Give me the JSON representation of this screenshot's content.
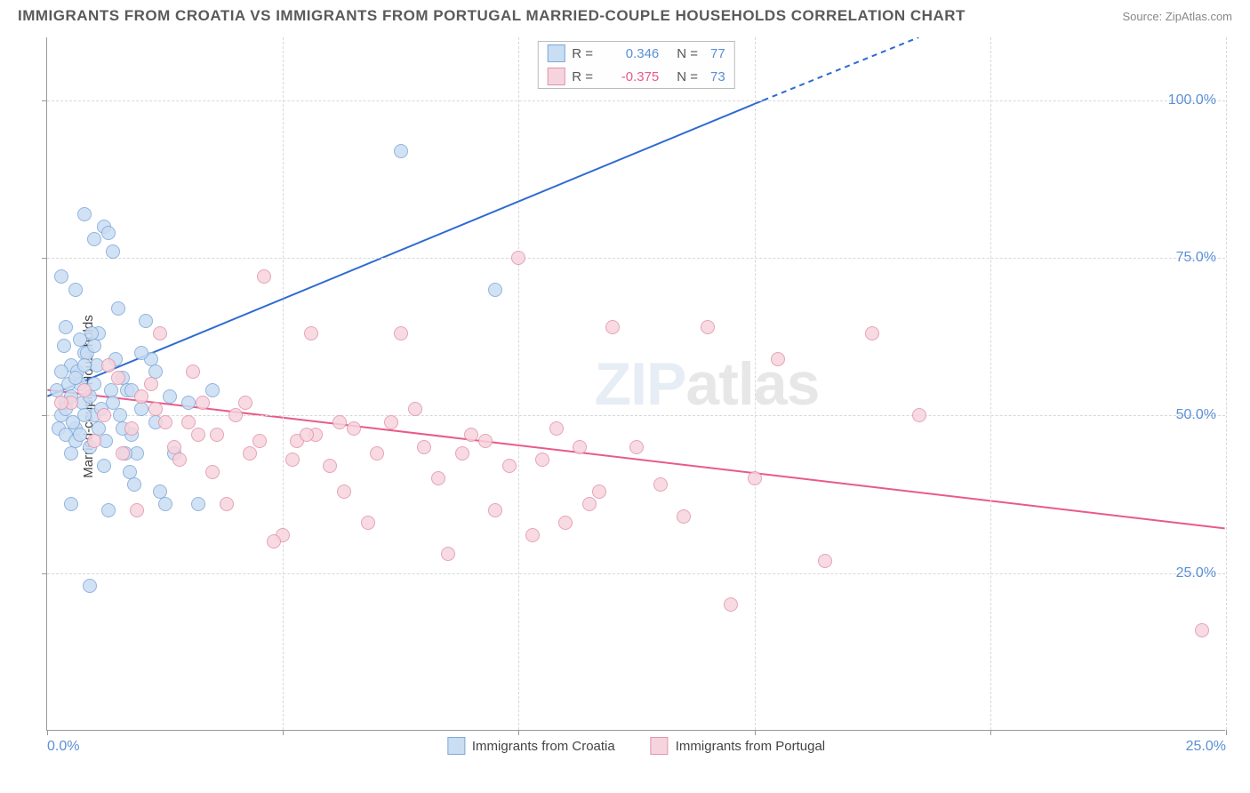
{
  "title": "IMMIGRANTS FROM CROATIA VS IMMIGRANTS FROM PORTUGAL MARRIED-COUPLE HOUSEHOLDS CORRELATION CHART",
  "source": "Source: ZipAtlas.com",
  "ylabel": "Married-couple Households",
  "watermark_a": "ZIP",
  "watermark_b": "atlas",
  "chart": {
    "type": "scatter",
    "xlim": [
      0,
      25
    ],
    "ylim": [
      0,
      110
    ],
    "xticks": [
      0,
      5,
      10,
      15,
      20,
      25
    ],
    "xtick_labels": [
      "0.0%",
      "",
      "",
      "",
      "",
      "25.0%"
    ],
    "yticks": [
      25,
      50,
      75,
      100
    ],
    "ytick_labels": [
      "25.0%",
      "50.0%",
      "75.0%",
      "100.0%"
    ],
    "grid_color": "#d8d8d8",
    "axis_color": "#999999",
    "tick_label_color": "#5b8fd6",
    "background": "#ffffff",
    "marker_radius": 8,
    "marker_stroke_width": 1.5,
    "line_width": 2
  },
  "series": [
    {
      "name": "Immigrants from Croatia",
      "fill": "#c9ddf3",
      "stroke": "#7fa8d9",
      "line_color": "#2e6bd1",
      "r_value": "0.346",
      "r_color": "#5b8fd6",
      "n_value": "77",
      "trend": {
        "x1": 0,
        "y1": 53,
        "x2_solid": 15.2,
        "y2_solid": 100,
        "x2_dash": 18.5,
        "y2_dash": 110
      },
      "points": [
        [
          0.3,
          72
        ],
        [
          0.4,
          52
        ],
        [
          0.5,
          58
        ],
        [
          0.6,
          48
        ],
        [
          0.7,
          55
        ],
        [
          0.8,
          60
        ],
        [
          0.9,
          45
        ],
        [
          1.0,
          50
        ],
        [
          1.1,
          63
        ],
        [
          1.2,
          80
        ],
        [
          1.3,
          79
        ],
        [
          1.4,
          76
        ],
        [
          1.5,
          67
        ],
        [
          1.6,
          56
        ],
        [
          1.7,
          54
        ],
        [
          1.8,
          47
        ],
        [
          1.9,
          44
        ],
        [
          2.0,
          51
        ],
        [
          2.1,
          65
        ],
        [
          2.2,
          59
        ],
        [
          2.3,
          49
        ],
        [
          2.4,
          38
        ],
        [
          2.5,
          36
        ],
        [
          2.6,
          53
        ],
        [
          0.2,
          54
        ],
        [
          0.25,
          48
        ],
        [
          0.35,
          61
        ],
        [
          0.45,
          55
        ],
        [
          0.55,
          49
        ],
        [
          0.65,
          57
        ],
        [
          0.75,
          52
        ],
        [
          0.85,
          60
        ],
        [
          0.95,
          63
        ],
        [
          1.05,
          58
        ],
        [
          1.15,
          51
        ],
        [
          1.25,
          46
        ],
        [
          1.35,
          54
        ],
        [
          1.45,
          59
        ],
        [
          1.55,
          50
        ],
        [
          1.65,
          44
        ],
        [
          1.75,
          41
        ],
        [
          1.85,
          39
        ],
        [
          0.8,
          82
        ],
        [
          1.0,
          78
        ],
        [
          0.6,
          70
        ],
        [
          1.3,
          35
        ],
        [
          0.5,
          36
        ],
        [
          0.9,
          23
        ],
        [
          2.7,
          44
        ],
        [
          3.0,
          52
        ],
        [
          3.2,
          36
        ],
        [
          3.5,
          54
        ],
        [
          2.0,
          60
        ],
        [
          7.5,
          92
        ],
        [
          1.0,
          55
        ],
        [
          0.4,
          47
        ],
        [
          0.7,
          62
        ],
        [
          0.3,
          50
        ],
        [
          0.5,
          53
        ],
        [
          0.6,
          56
        ],
        [
          0.8,
          50
        ],
        [
          1.1,
          48
        ],
        [
          1.4,
          52
        ],
        [
          1.6,
          48
        ],
        [
          0.4,
          64
        ],
        [
          0.9,
          53
        ],
        [
          1.2,
          42
        ],
        [
          0.6,
          46
        ],
        [
          0.3,
          57
        ],
        [
          0.5,
          44
        ],
        [
          0.8,
          58
        ],
        [
          1.0,
          61
        ],
        [
          0.7,
          47
        ],
        [
          0.4,
          51
        ],
        [
          9.5,
          70
        ],
        [
          1.8,
          54
        ],
        [
          2.3,
          57
        ]
      ]
    },
    {
      "name": "Immigrants from Portugal",
      "fill": "#f6d4de",
      "stroke": "#e394ad",
      "line_color": "#e85a8a",
      "r_value": "-0.375",
      "r_color": "#e85a8a",
      "n_value": "73",
      "trend": {
        "x1": 0,
        "y1": 54,
        "x2_solid": 25,
        "y2_solid": 32,
        "x2_dash": 25,
        "y2_dash": 32
      },
      "points": [
        [
          0.5,
          52
        ],
        [
          0.8,
          54
        ],
        [
          1.2,
          50
        ],
        [
          1.5,
          56
        ],
        [
          1.8,
          48
        ],
        [
          2.0,
          53
        ],
        [
          2.3,
          51
        ],
        [
          2.7,
          45
        ],
        [
          3.0,
          49
        ],
        [
          3.3,
          52
        ],
        [
          3.6,
          47
        ],
        [
          4.0,
          50
        ],
        [
          4.3,
          44
        ],
        [
          4.6,
          72
        ],
        [
          5.0,
          31
        ],
        [
          5.3,
          46
        ],
        [
          5.6,
          63
        ],
        [
          6.0,
          42
        ],
        [
          6.5,
          48
        ],
        [
          7.0,
          44
        ],
        [
          7.5,
          63
        ],
        [
          8.0,
          45
        ],
        [
          8.5,
          28
        ],
        [
          9.0,
          47
        ],
        [
          9.5,
          35
        ],
        [
          10.0,
          75
        ],
        [
          10.5,
          43
        ],
        [
          11.0,
          33
        ],
        [
          11.5,
          36
        ],
        [
          12.0,
          64
        ],
        [
          12.5,
          45
        ],
        [
          13.0,
          39
        ],
        [
          13.5,
          34
        ],
        [
          14.0,
          64
        ],
        [
          14.5,
          20
        ],
        [
          15.0,
          40
        ],
        [
          15.5,
          59
        ],
        [
          16.5,
          27
        ],
        [
          17.5,
          63
        ],
        [
          18.5,
          50
        ],
        [
          1.0,
          46
        ],
        [
          1.3,
          58
        ],
        [
          1.6,
          44
        ],
        [
          1.9,
          35
        ],
        [
          2.2,
          55
        ],
        [
          2.5,
          49
        ],
        [
          2.8,
          43
        ],
        [
          3.2,
          47
        ],
        [
          3.5,
          41
        ],
        [
          3.8,
          36
        ],
        [
          4.2,
          52
        ],
        [
          4.5,
          46
        ],
        [
          4.8,
          30
        ],
        [
          5.2,
          43
        ],
        [
          5.7,
          47
        ],
        [
          6.3,
          38
        ],
        [
          6.8,
          33
        ],
        [
          7.3,
          49
        ],
        [
          7.8,
          51
        ],
        [
          8.3,
          40
        ],
        [
          8.8,
          44
        ],
        [
          9.3,
          46
        ],
        [
          9.8,
          42
        ],
        [
          10.3,
          31
        ],
        [
          10.8,
          48
        ],
        [
          11.3,
          45
        ],
        [
          11.7,
          38
        ],
        [
          5.5,
          47
        ],
        [
          6.2,
          49
        ],
        [
          2.4,
          63
        ],
        [
          3.1,
          57
        ],
        [
          24.5,
          16
        ],
        [
          0.3,
          52
        ]
      ]
    }
  ],
  "legend_top": {
    "r_label": "R =",
    "n_label": "N ="
  },
  "legend_bottom": [
    {
      "label": "Immigrants from Croatia",
      "fill": "#c9ddf3",
      "stroke": "#7fa8d9"
    },
    {
      "label": "Immigrants from Portugal",
      "fill": "#f6d4de",
      "stroke": "#e394ad"
    }
  ]
}
